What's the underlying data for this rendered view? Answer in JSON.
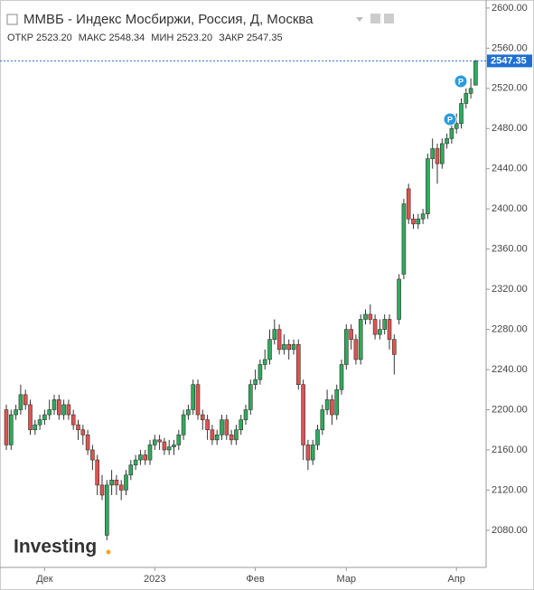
{
  "chart_data": {
    "type": "candlestick",
    "title": "ММВБ - Индекс Мосбиржи, Россия, Д, Москва",
    "ohlc_header": [
      {
        "label": "ОТКР",
        "value": "2523.20"
      },
      {
        "label": "МАКС",
        "value": "2548.34"
      },
      {
        "label": "МИН",
        "value": "2523.20"
      },
      {
        "label": "ЗАКР",
        "value": "2547.35"
      }
    ],
    "event_markers": [
      "P",
      "P"
    ],
    "watermark": "Investing",
    "categories": [
      null,
      null,
      null,
      null,
      null,
      null,
      null,
      null,
      "Дек",
      null,
      null,
      null,
      null,
      null,
      null,
      null,
      null,
      null,
      null,
      null,
      null,
      null,
      null,
      null,
      null,
      null,
      null,
      null,
      null,
      null,
      null,
      "2023",
      null,
      null,
      null,
      null,
      null,
      null,
      null,
      null,
      null,
      null,
      null,
      null,
      null,
      null,
      null,
      null,
      null,
      null,
      null,
      null,
      "Фев",
      null,
      null,
      null,
      null,
      null,
      null,
      null,
      null,
      null,
      null,
      null,
      null,
      null,
      null,
      null,
      null,
      null,
      null,
      "Мар",
      null,
      null,
      null,
      null,
      null,
      null,
      null,
      null,
      null,
      null,
      null,
      null,
      null,
      null,
      null,
      null,
      null,
      null,
      null,
      null,
      null,
      null,
      "Апр",
      null,
      null,
      null,
      null
    ],
    "open": [
      2200,
      2165,
      2195,
      2200,
      2215,
      2205,
      2180,
      2185,
      2190,
      2195,
      2200,
      2210,
      2195,
      2205,
      2195,
      2185,
      2180,
      2175,
      2160,
      2150,
      2125,
      2075,
      2125,
      2130,
      2125,
      2120,
      2135,
      2145,
      2150,
      2155,
      2150,
      2165,
      2170,
      2168,
      2160,
      2163,
      2165,
      2175,
      2195,
      2200,
      2225,
      2195,
      2190,
      2180,
      2170,
      2175,
      2190,
      2175,
      2170,
      2180,
      2190,
      2200,
      2225,
      2230,
      2245,
      2250,
      2270,
      2280,
      2260,
      2265,
      2260,
      2265,
      2225,
      2165,
      2150,
      2165,
      2180,
      2200,
      2210,
      2195,
      2220,
      2245,
      2280,
      2270,
      2250,
      2290,
      2295,
      2290,
      2275,
      2280,
      2290,
      2270,
      2290,
      2335,
      2420,
      2390,
      2385,
      2390,
      2395,
      2450,
      2460,
      2445,
      2465,
      2470,
      2480,
      2485,
      2505,
      2515,
      2523.2
    ],
    "high": [
      2205,
      2200,
      2205,
      2225,
      2220,
      2210,
      2190,
      2195,
      2200,
      2210,
      2215,
      2215,
      2210,
      2210,
      2200,
      2190,
      2185,
      2180,
      2165,
      2155,
      2135,
      2130,
      2140,
      2135,
      2130,
      2140,
      2150,
      2155,
      2160,
      2160,
      2170,
      2175,
      2175,
      2172,
      2170,
      2170,
      2180,
      2200,
      2205,
      2230,
      2230,
      2200,
      2195,
      2185,
      2180,
      2195,
      2195,
      2180,
      2185,
      2195,
      2205,
      2230,
      2240,
      2250,
      2260,
      2280,
      2290,
      2285,
      2275,
      2270,
      2270,
      2270,
      2230,
      2170,
      2170,
      2185,
      2205,
      2220,
      2215,
      2225,
      2250,
      2285,
      2285,
      2275,
      2295,
      2300,
      2305,
      2295,
      2290,
      2295,
      2295,
      2275,
      2335,
      2410,
      2425,
      2395,
      2395,
      2400,
      2455,
      2470,
      2465,
      2470,
      2475,
      2485,
      2495,
      2510,
      2520,
      2530,
      2548.34
    ],
    "low": [
      2160,
      2160,
      2190,
      2195,
      2200,
      2175,
      2175,
      2180,
      2185,
      2190,
      2195,
      2190,
      2190,
      2190,
      2180,
      2170,
      2165,
      2155,
      2140,
      2115,
      2110,
      2070,
      2115,
      2115,
      2110,
      2115,
      2130,
      2140,
      2145,
      2145,
      2145,
      2160,
      2160,
      2155,
      2155,
      2155,
      2160,
      2170,
      2190,
      2195,
      2190,
      2180,
      2170,
      2165,
      2165,
      2170,
      2170,
      2165,
      2165,
      2175,
      2185,
      2195,
      2220,
      2225,
      2240,
      2245,
      2265,
      2255,
      2255,
      2250,
      2255,
      2220,
      2150,
      2140,
      2145,
      2160,
      2175,
      2195,
      2185,
      2190,
      2215,
      2240,
      2260,
      2245,
      2245,
      2285,
      2285,
      2270,
      2270,
      2275,
      2260,
      2235,
      2285,
      2330,
      2385,
      2380,
      2380,
      2385,
      2390,
      2440,
      2425,
      2440,
      2460,
      2465,
      2475,
      2480,
      2500,
      2510,
      2523.2
    ],
    "close": [
      2165,
      2195,
      2200,
      2215,
      2205,
      2180,
      2185,
      2190,
      2195,
      2200,
      2210,
      2195,
      2205,
      2195,
      2185,
      2180,
      2175,
      2160,
      2150,
      2125,
      2115,
      2125,
      2130,
      2125,
      2120,
      2135,
      2145,
      2150,
      2155,
      2150,
      2165,
      2170,
      2168,
      2160,
      2163,
      2165,
      2175,
      2195,
      2200,
      2225,
      2195,
      2190,
      2180,
      2170,
      2175,
      2190,
      2175,
      2170,
      2180,
      2190,
      2200,
      2225,
      2230,
      2245,
      2250,
      2270,
      2280,
      2260,
      2265,
      2260,
      2265,
      2225,
      2165,
      2150,
      2165,
      2180,
      2200,
      2210,
      2195,
      2220,
      2245,
      2280,
      2270,
      2250,
      2290,
      2295,
      2290,
      2275,
      2280,
      2290,
      2270,
      2255,
      2330,
      2405,
      2390,
      2385,
      2390,
      2395,
      2450,
      2460,
      2445,
      2465,
      2470,
      2480,
      2485,
      2505,
      2515,
      2520,
      2547.35
    ],
    "up_color": "#2eab5b",
    "down_color": "#e0534e",
    "last_price_color": "#1e6fd1",
    "ylim": [
      2043,
      2608
    ],
    "yticks": [
      {
        "value": 2080,
        "label": "2080.00"
      },
      {
        "value": 2120,
        "label": "2120.00"
      },
      {
        "value": 2160,
        "label": "2160.00"
      },
      {
        "value": 2200,
        "label": "2200.00"
      },
      {
        "value": 2240,
        "label": "2240.00"
      },
      {
        "value": 2280,
        "label": "2280.00"
      },
      {
        "value": 2320,
        "label": "2320.00"
      },
      {
        "value": 2360,
        "label": "2360.00"
      },
      {
        "value": 2400,
        "label": "2400.00"
      },
      {
        "value": 2440,
        "label": "2440.00"
      },
      {
        "value": 2480,
        "label": "2480.00"
      },
      {
        "value": 2520,
        "label": "2520.00"
      },
      {
        "value": 2560,
        "label": "2560.00"
      },
      {
        "value": 2600,
        "label": "2600.00"
      }
    ],
    "grid": false
  }
}
